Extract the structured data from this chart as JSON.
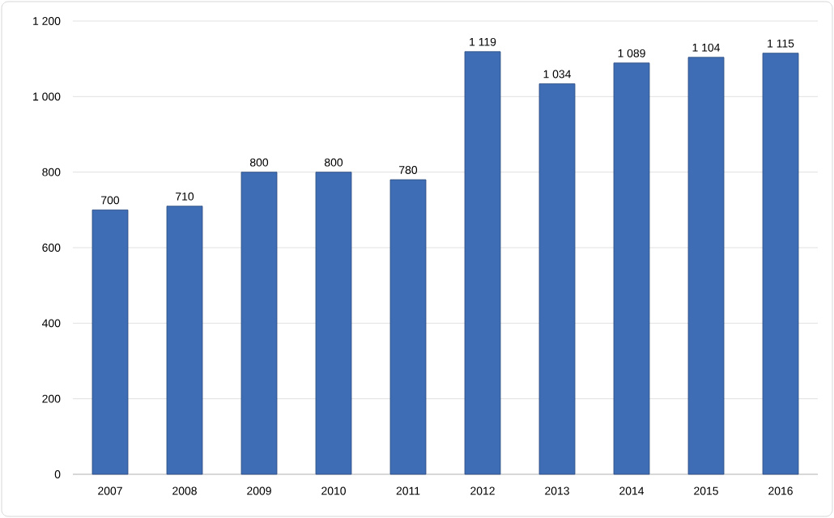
{
  "chart_data": {
    "type": "bar",
    "categories": [
      "2007",
      "2008",
      "2009",
      "2010",
      "2011",
      "2012",
      "2013",
      "2014",
      "2015",
      "2016"
    ],
    "values": [
      700,
      710,
      800,
      800,
      780,
      1119,
      1034,
      1089,
      1104,
      1115
    ],
    "value_labels": [
      "700",
      "710",
      "800",
      "800",
      "780",
      "1 119",
      "1 034",
      "1 089",
      "1 104",
      "1 115"
    ],
    "color": "#3f6db5",
    "ylim": [
      0,
      1200
    ],
    "yticks": [
      0,
      200,
      400,
      600,
      800,
      {
        "value": 1000,
        "label": "1 000"
      },
      {
        "value": 1200,
        "label": "1 200"
      }
    ],
    "grid": "y"
  }
}
